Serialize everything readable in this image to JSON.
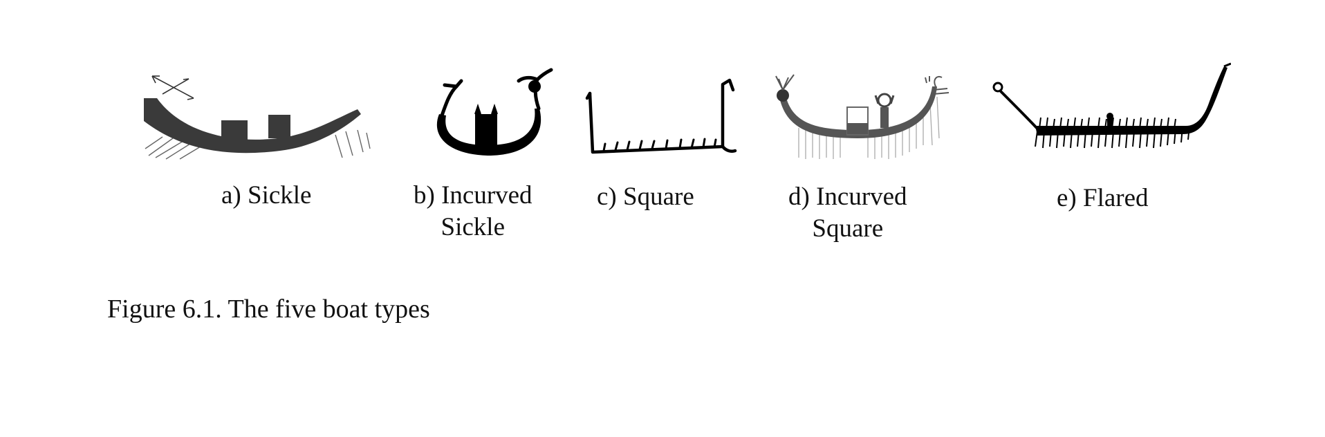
{
  "figure": {
    "panels": [
      {
        "id": "a",
        "label": "a) Sickle",
        "icon": "sickle-boat-icon"
      },
      {
        "id": "b",
        "label": "b) Incurved",
        "label_line2": "Sickle",
        "icon": "incurved-sickle-boat-icon"
      },
      {
        "id": "c",
        "label": "c) Square",
        "icon": "square-boat-icon"
      },
      {
        "id": "d",
        "label": "d) Incurved",
        "label_line2": "Square",
        "icon": "incurved-square-boat-icon"
      },
      {
        "id": "e",
        "label": "e) Flared",
        "icon": "flared-boat-icon"
      }
    ],
    "caption": "Figure 6.1. The five boat types"
  }
}
